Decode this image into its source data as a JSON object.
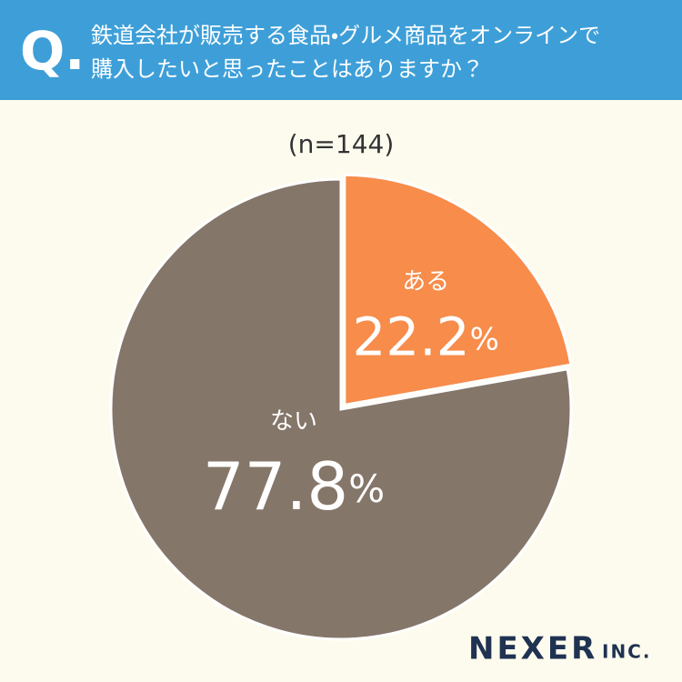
{
  "chart_data": {
    "type": "pie",
    "question_label": "Q.",
    "title": [
      "鉄道会社が販売する食品・グルメ商品をオンラインで",
      "購入したいと思ったことはありますか？"
    ],
    "subtitle": "(n=144)",
    "categories": [
      "ある",
      "ない"
    ],
    "values": [
      22.2,
      77.8
    ],
    "value_labels": [
      "22.2%",
      "77.8%"
    ],
    "colors": [
      "#f78c4b",
      "#85766a"
    ],
    "logo": [
      "NEXER",
      "INC."
    ]
  }
}
